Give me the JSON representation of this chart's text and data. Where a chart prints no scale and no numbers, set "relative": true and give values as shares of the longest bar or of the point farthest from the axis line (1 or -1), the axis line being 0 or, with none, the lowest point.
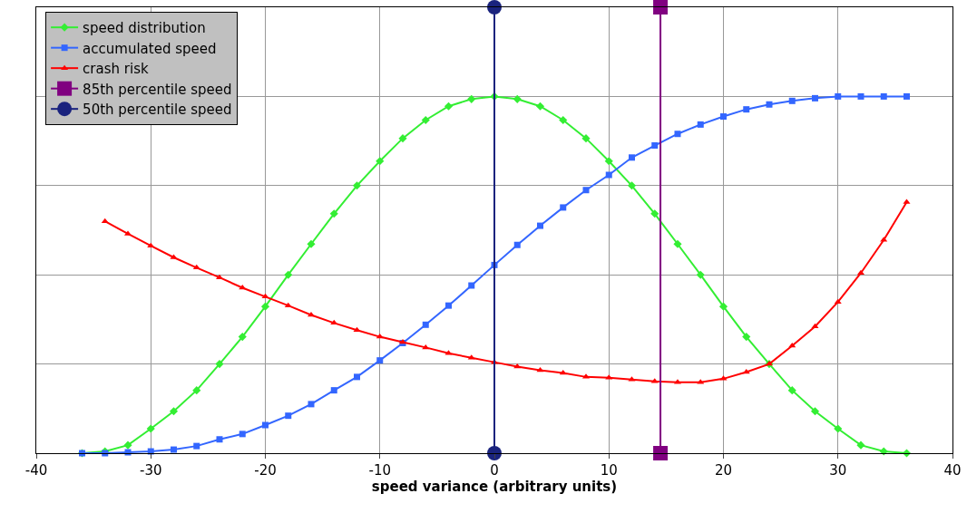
{
  "chart_data": {
    "type": "line",
    "xlabel": "speed variance (arbitrary units)",
    "relative": true,
    "xlim": [
      -40,
      40
    ],
    "xticks": [
      -40,
      -30,
      -20,
      -10,
      0,
      10,
      20,
      30,
      40
    ],
    "grid": true,
    "legend": "top left",
    "line_style": "solid",
    "series": [
      {
        "name": "speed distribution",
        "color": "#33ee33",
        "marker": "diamond",
        "x": [
          -36,
          -34,
          -32,
          -30,
          -28,
          -26,
          -24,
          -22,
          -20,
          -18,
          -16,
          -14,
          -12,
          -10,
          -8,
          -6,
          -4,
          -2,
          0,
          2,
          4,
          6,
          8,
          10,
          12,
          14,
          16,
          18,
          20,
          22,
          24,
          26,
          28,
          30,
          32,
          34,
          36
        ],
        "values": [
          0,
          0.004,
          0.018,
          0.055,
          0.094,
          0.141,
          0.2,
          0.261,
          0.329,
          0.4,
          0.469,
          0.537,
          0.6,
          0.655,
          0.706,
          0.747,
          0.778,
          0.794,
          0.8,
          0.794,
          0.778,
          0.747,
          0.706,
          0.655,
          0.6,
          0.537,
          0.469,
          0.4,
          0.329,
          0.261,
          0.2,
          0.141,
          0.094,
          0.055,
          0.018,
          0.004,
          0
        ]
      },
      {
        "name": "accumulated speed",
        "color": "#3366ff",
        "marker": "square",
        "x": [
          -36,
          -34,
          -32,
          -30,
          -28,
          -26,
          -24,
          -22,
          -20,
          -18,
          -16,
          -14,
          -12,
          -10,
          -8,
          -6,
          -4,
          -2,
          0,
          2,
          4,
          6,
          8,
          10,
          12,
          14,
          16,
          18,
          20,
          22,
          24,
          26,
          28,
          30,
          32,
          34,
          36
        ],
        "values": [
          0,
          0,
          0.002,
          0.004,
          0.008,
          0.016,
          0.031,
          0.043,
          0.063,
          0.084,
          0.11,
          0.141,
          0.171,
          0.208,
          0.247,
          0.288,
          0.331,
          0.376,
          0.422,
          0.467,
          0.51,
          0.551,
          0.59,
          0.624,
          0.663,
          0.69,
          0.716,
          0.737,
          0.755,
          0.771,
          0.782,
          0.79,
          0.796,
          0.8,
          0.8,
          0.8,
          0.8
        ]
      },
      {
        "name": "crash risk",
        "color": "#ff0000",
        "marker": "triangle",
        "x": [
          -34,
          -32,
          -30,
          -28,
          -26,
          -24,
          -22,
          -20,
          -18,
          -16,
          -14,
          -12,
          -10,
          -8,
          -6,
          -4,
          -2,
          0,
          2,
          4,
          6,
          8,
          10,
          12,
          14,
          16,
          18,
          20,
          22,
          24,
          26,
          28,
          30,
          32,
          34,
          36
        ],
        "values": [
          0.52,
          0.492,
          0.465,
          0.439,
          0.416,
          0.394,
          0.371,
          0.351,
          0.331,
          0.31,
          0.292,
          0.276,
          0.261,
          0.249,
          0.237,
          0.224,
          0.214,
          0.204,
          0.194,
          0.186,
          0.18,
          0.171,
          0.169,
          0.165,
          0.161,
          0.159,
          0.159,
          0.167,
          0.182,
          0.2,
          0.241,
          0.284,
          0.339,
          0.404,
          0.478,
          0.563
        ]
      },
      {
        "name": "85th percentile speed",
        "color": "#800080",
        "marker": "square",
        "x": [
          14.5,
          14.5
        ],
        "values": [
          0,
          1
        ]
      },
      {
        "name": "50th percentile speed",
        "color": "#1a237e",
        "marker": "circle",
        "x": [
          0,
          0
        ],
        "values": [
          0,
          1
        ]
      }
    ]
  }
}
